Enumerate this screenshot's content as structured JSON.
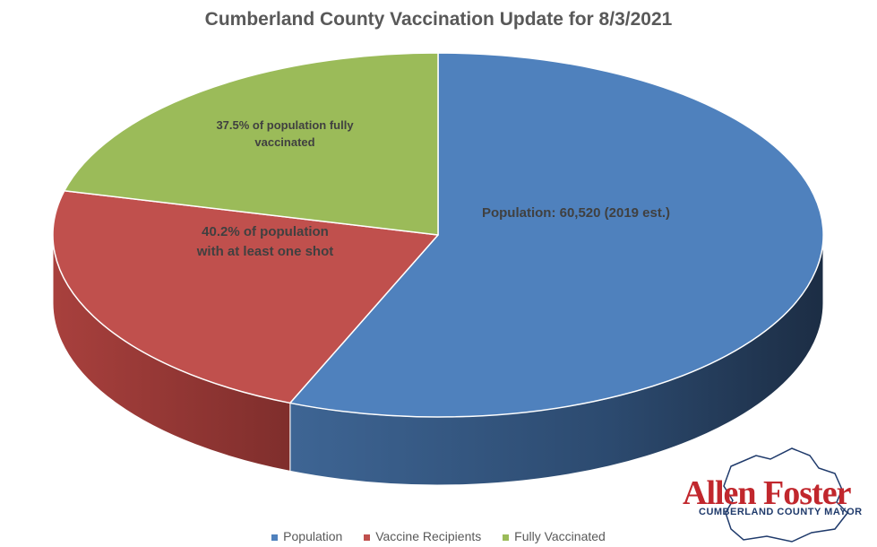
{
  "chart_data": {
    "type": "pie",
    "title": "Cumberland County Vaccination Update for 8/3/2021",
    "categories": [
      "Population",
      "Vaccine Recipients",
      "Fully Vaccinated"
    ],
    "values": [
      60520,
      24329,
      22695
    ],
    "data_labels": [
      "Population: 60,520 (2019 est.)",
      "40.2% of population with at least one shot",
      "37.5% of population fully vaccinated"
    ],
    "colors": [
      "#4f81bd",
      "#c0504d",
      "#9bbb59"
    ],
    "legend": "bottom",
    "style": "3d"
  },
  "logo": {
    "name": "Allen Foster",
    "subtitle": "CUMBERLAND COUNTY MAYOR"
  }
}
